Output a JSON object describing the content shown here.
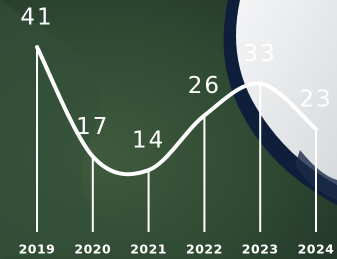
{
  "chart_data": {
    "type": "line",
    "categories": [
      "2019",
      "2020",
      "2021",
      "2022",
      "2023",
      "2024"
    ],
    "values": [
      41,
      17,
      14,
      26,
      33,
      23
    ],
    "color": "#ffffff"
  }
}
